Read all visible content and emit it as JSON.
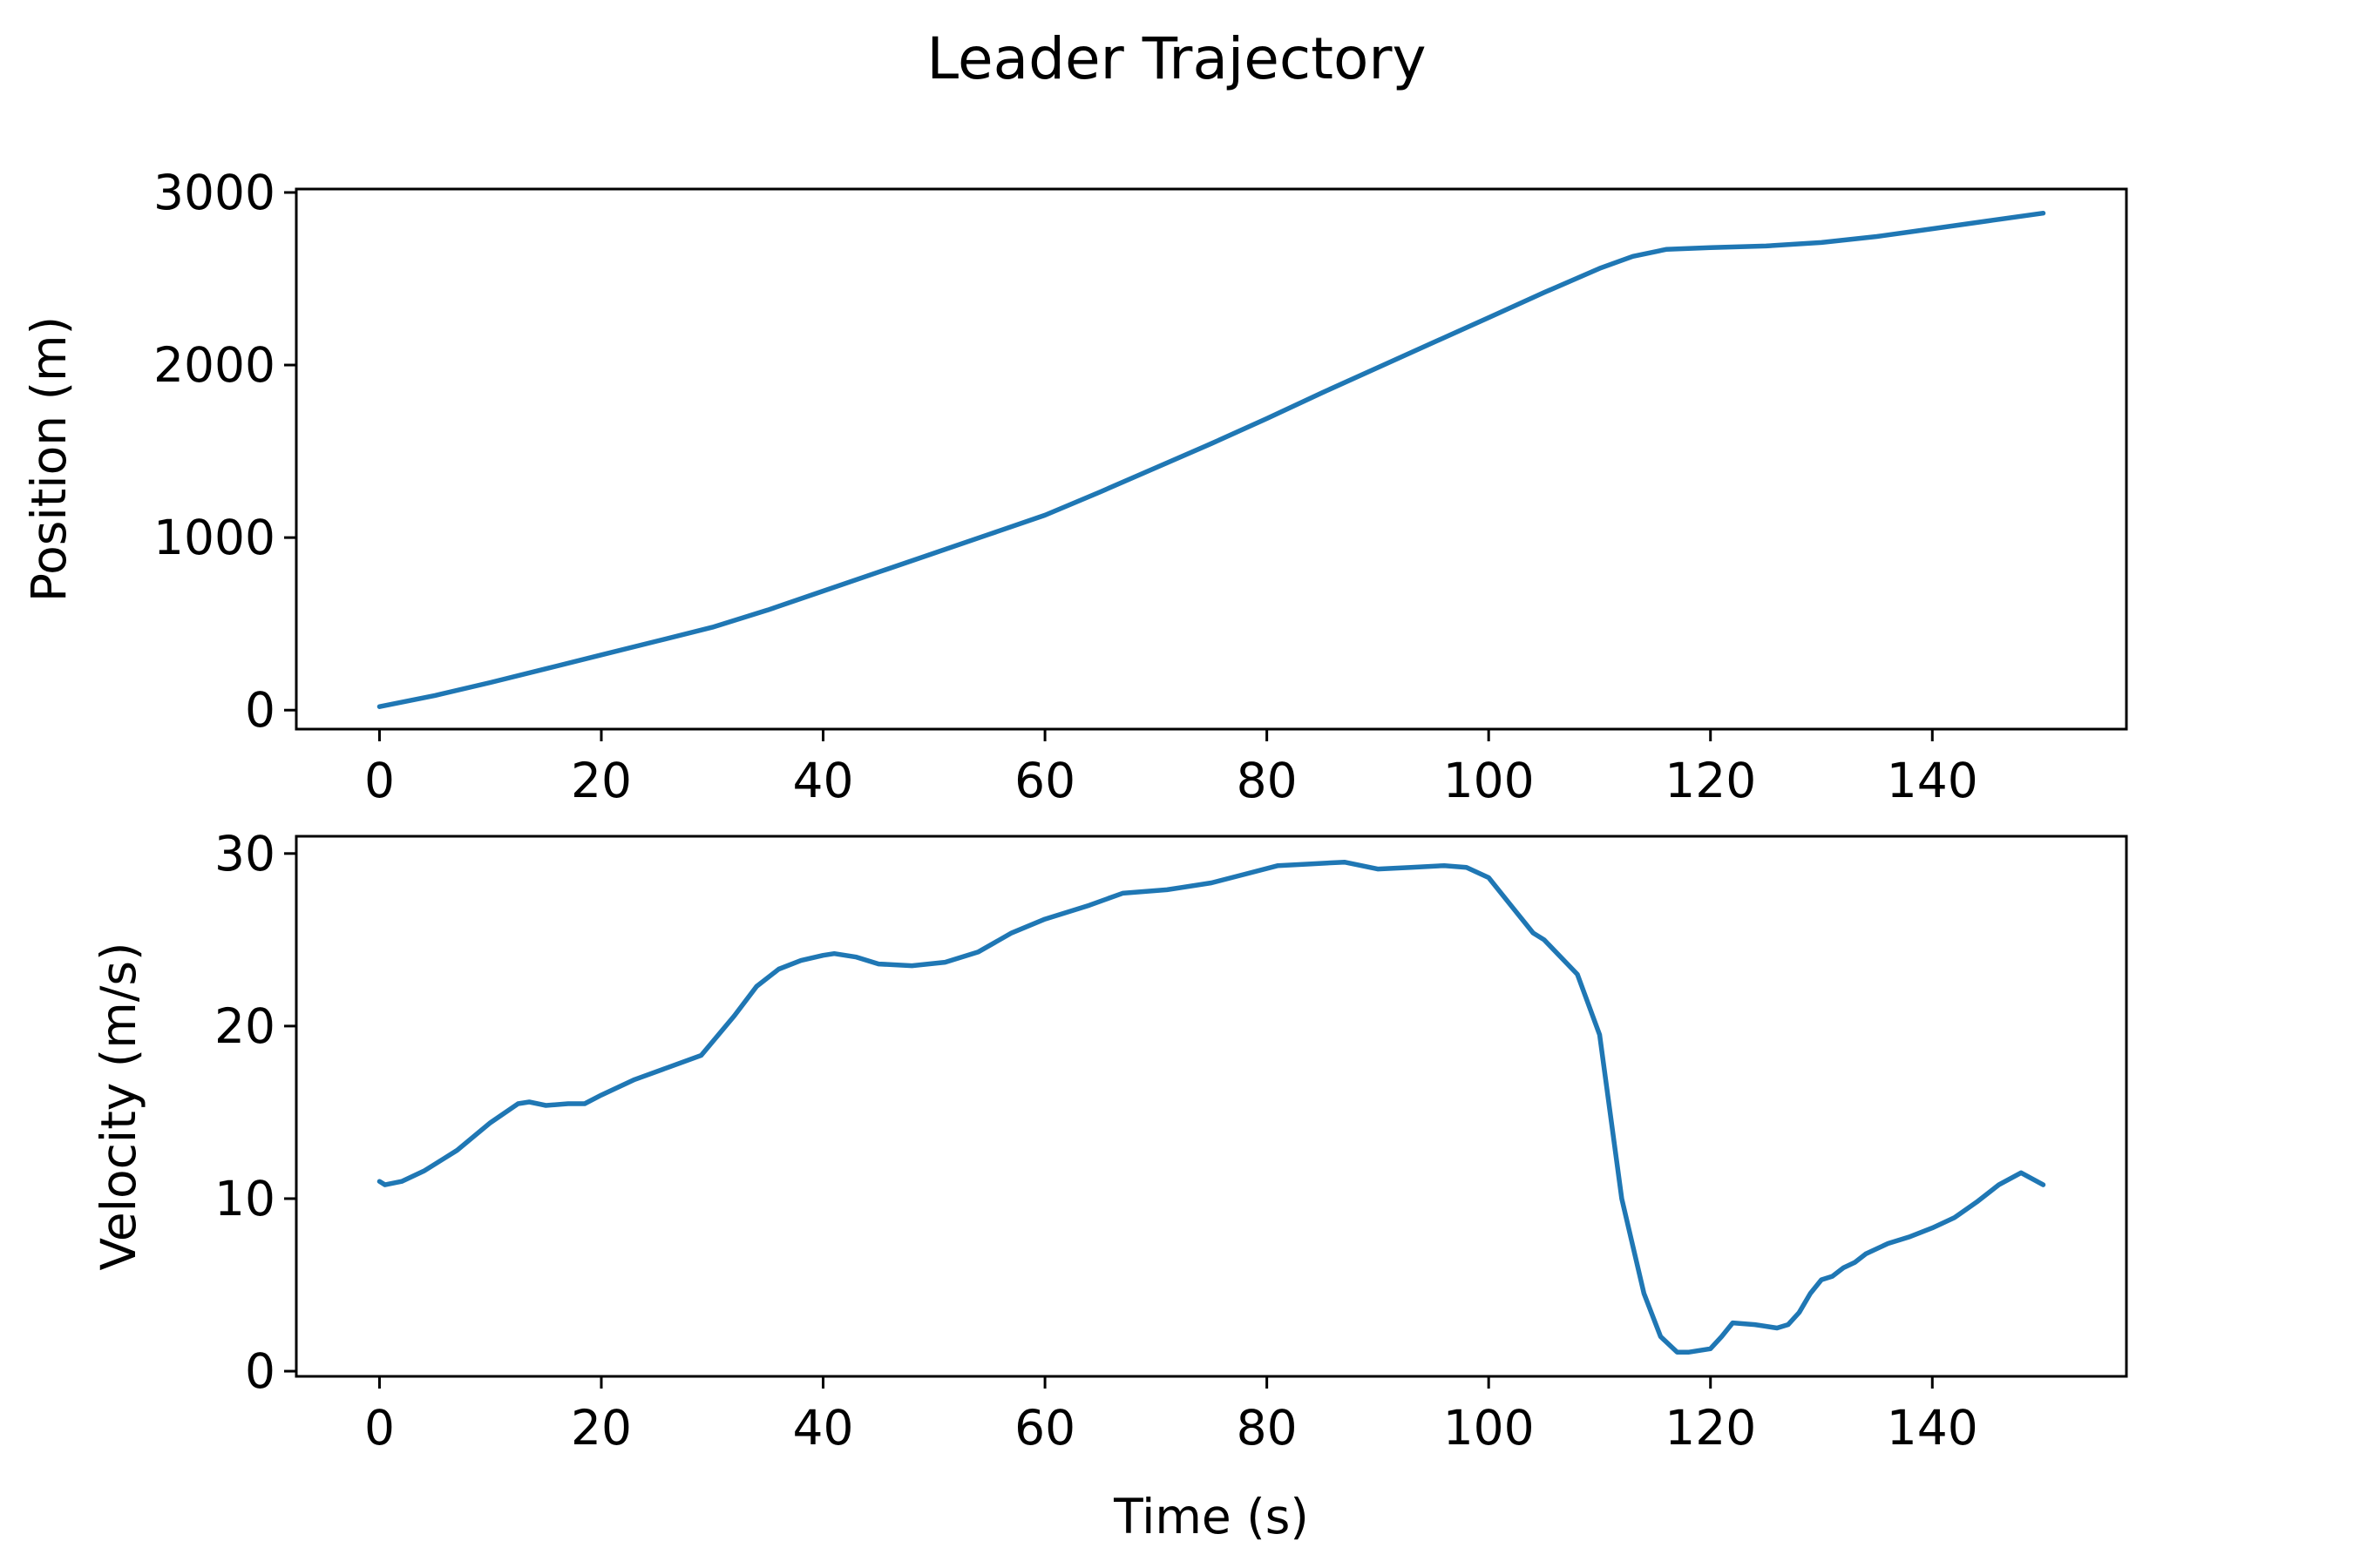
{
  "title": "Leader Trajectory",
  "line_color": "#1f77b4",
  "chart_data": [
    {
      "type": "line",
      "title": "",
      "xlabel": "",
      "ylabel": "Position (m)",
      "xlim": [
        -7.5,
        157.5
      ],
      "ylim": [
        -110,
        3020
      ],
      "xticks": [
        0,
        20,
        40,
        60,
        80,
        100,
        120,
        140
      ],
      "yticks": [
        0,
        1000,
        2000,
        3000
      ],
      "grid": false,
      "x": [
        0,
        5,
        10,
        15,
        20,
        25,
        30,
        35,
        40,
        45,
        50,
        55,
        60,
        65,
        70,
        75,
        80,
        85,
        90,
        95,
        100,
        105,
        110,
        113,
        116,
        120,
        125,
        130,
        135,
        140,
        145,
        150
      ],
      "values": [
        20,
        85,
        160,
        240,
        320,
        400,
        480,
        580,
        690,
        800,
        910,
        1020,
        1130,
        1265,
        1405,
        1545,
        1690,
        1840,
        1985,
        2130,
        2275,
        2420,
        2560,
        2630,
        2670,
        2680,
        2690,
        2710,
        2745,
        2790,
        2835,
        2880
      ]
    },
    {
      "type": "line",
      "title": "",
      "xlabel": "Time (s)",
      "ylabel": "Velocity (m/s)",
      "xlim": [
        -7.5,
        157.5
      ],
      "ylim": [
        -0.3,
        31.0
      ],
      "xticks": [
        0,
        20,
        40,
        60,
        80,
        100,
        120,
        140
      ],
      "yticks": [
        0,
        10,
        20,
        30
      ],
      "grid": false,
      "x": [
        0,
        0.5,
        2,
        4,
        7,
        10,
        12.5,
        13.5,
        15,
        17,
        18.5,
        20,
        23,
        26,
        29,
        32,
        34,
        36,
        38,
        40,
        41,
        43,
        45,
        48,
        51,
        54,
        57,
        60,
        64,
        67,
        71,
        75,
        78,
        81,
        84,
        87,
        90,
        93,
        96,
        98,
        100,
        102,
        104,
        105,
        108,
        110,
        112,
        114,
        115.5,
        117,
        118,
        120,
        121,
        122,
        124,
        126,
        127,
        128,
        129,
        130,
        131,
        132,
        133,
        134,
        136,
        138,
        140,
        142,
        144,
        146,
        148,
        150
      ],
      "values": [
        11.0,
        10.8,
        11.0,
        11.6,
        12.8,
        14.4,
        15.5,
        15.6,
        15.4,
        15.5,
        15.5,
        16.0,
        16.9,
        17.6,
        18.3,
        20.6,
        22.3,
        23.3,
        23.8,
        24.1,
        24.2,
        24.0,
        23.6,
        23.5,
        23.7,
        24.3,
        25.4,
        26.2,
        27.0,
        27.7,
        27.9,
        28.3,
        28.8,
        29.3,
        29.4,
        29.5,
        29.1,
        29.2,
        29.3,
        29.2,
        28.6,
        27.0,
        25.4,
        25.0,
        23.0,
        19.5,
        10.0,
        4.5,
        2.0,
        1.1,
        1.1,
        1.3,
        2.0,
        2.8,
        2.7,
        2.5,
        2.7,
        3.4,
        4.5,
        5.3,
        5.5,
        6.0,
        6.3,
        6.8,
        7.4,
        7.8,
        8.3,
        8.9,
        9.8,
        10.8,
        11.5,
        10.8
      ]
    }
  ]
}
